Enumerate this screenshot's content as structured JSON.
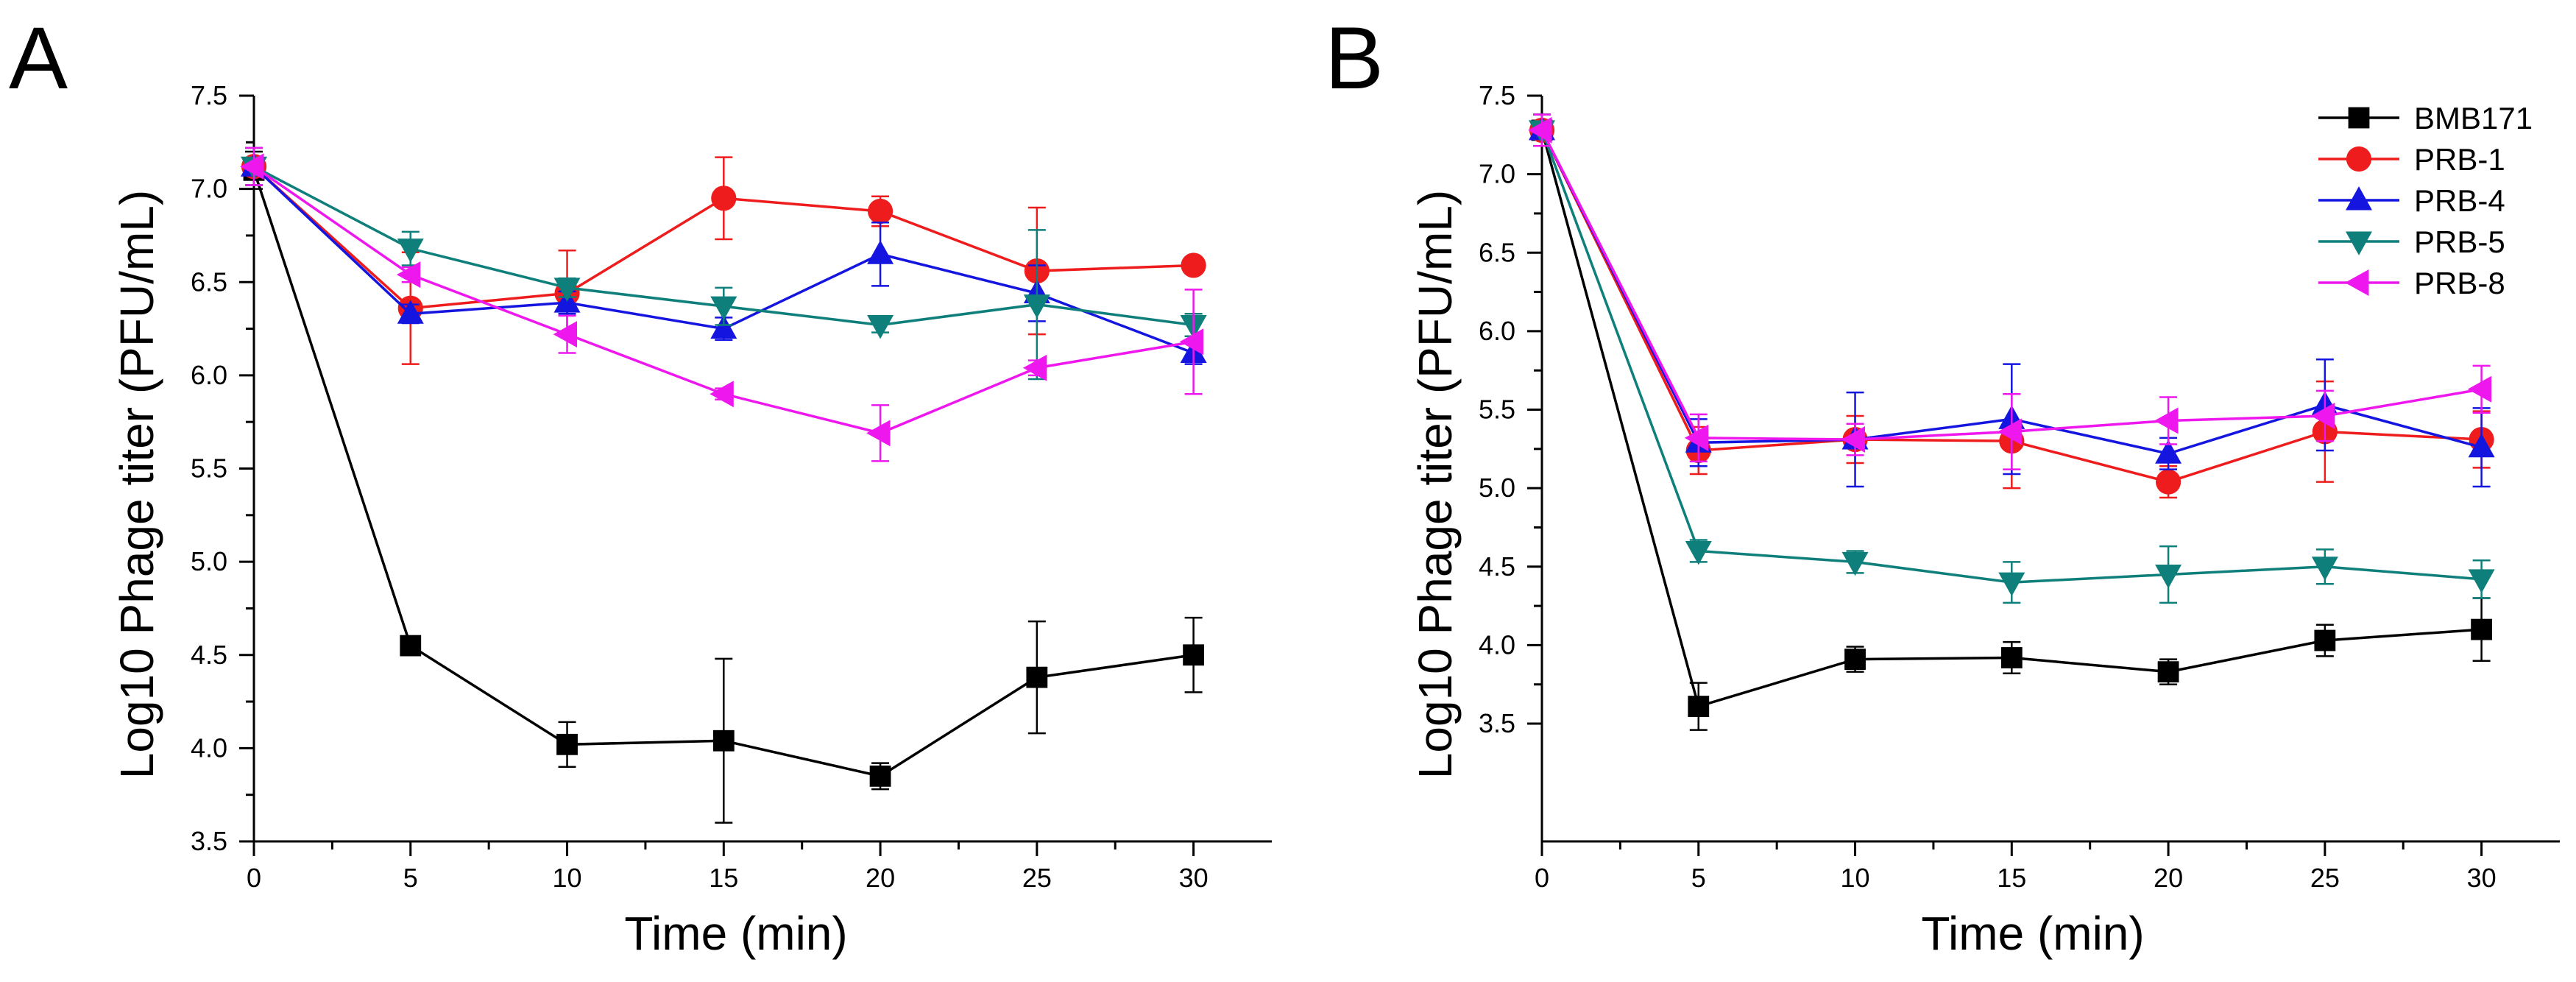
{
  "colors": {
    "BMB171": "#000000",
    "PRB-1": "#ee1c1c",
    "PRB-4": "#1515e0",
    "PRB-5": "#0e7f7a",
    "PRB-8": "#ee18ee"
  },
  "markers": {
    "BMB171": "square",
    "PRB-1": "circle",
    "PRB-4": "triangle-up",
    "PRB-5": "triangle-down",
    "PRB-8": "triangle-left"
  },
  "chart_data": [
    {
      "panel": "A",
      "type": "line",
      "xlabel": "Time (min)",
      "ylabel": "Log10 Phage titer (PFU/mL)",
      "xlim": [
        0,
        32.5
      ],
      "ylim": [
        3.5,
        7.5
      ],
      "xticks": [
        0,
        5,
        10,
        15,
        20,
        25,
        30
      ],
      "yticks": [
        "3.5",
        "4.0",
        "4.5",
        "5.0",
        "5.5",
        "6.0",
        "6.5",
        "7.0",
        "7.5"
      ],
      "legend": false,
      "series": [
        {
          "name": "BMB171",
          "x": [
            0,
            5,
            10,
            15,
            20,
            25,
            30
          ],
          "y": [
            7.1,
            4.55,
            4.02,
            4.04,
            3.85,
            4.38,
            4.5
          ],
          "err": [
            0.1,
            0.03,
            0.12,
            0.44,
            0.07,
            0.3,
            0.2
          ]
        },
        {
          "name": "PRB-1",
          "x": [
            0,
            5,
            10,
            15,
            20,
            25,
            30
          ],
          "y": [
            7.12,
            6.36,
            6.44,
            6.95,
            6.88,
            6.56,
            6.59
          ],
          "err": [
            0.1,
            0.3,
            0.23,
            0.22,
            0.08,
            0.34,
            0.03
          ]
        },
        {
          "name": "PRB-4",
          "x": [
            0,
            5,
            10,
            15,
            20,
            25,
            30
          ],
          "y": [
            7.12,
            6.33,
            6.39,
            6.25,
            6.65,
            6.44,
            6.12
          ],
          "err": [
            0.1,
            0.05,
            0.06,
            0.06,
            0.17,
            0.15,
            0.06
          ]
        },
        {
          "name": "PRB-5",
          "x": [
            0,
            5,
            10,
            15,
            20,
            25,
            30
          ],
          "y": [
            7.12,
            6.68,
            6.47,
            6.37,
            6.27,
            6.38,
            6.27
          ],
          "err": [
            0.1,
            0.09,
            0.05,
            0.1,
            0.04,
            0.4,
            0.06
          ]
        },
        {
          "name": "PRB-8",
          "x": [
            0,
            5,
            10,
            15,
            20,
            25,
            30
          ],
          "y": [
            7.12,
            6.54,
            6.22,
            5.9,
            5.69,
            6.04,
            6.18
          ],
          "err": [
            0.1,
            0.04,
            0.1,
            0.03,
            0.15,
            0.04,
            0.28
          ]
        }
      ]
    },
    {
      "panel": "B",
      "type": "line",
      "xlabel": "Time (min)",
      "ylabel": "Log10 Phage titer (PFU/mL)",
      "xlim": [
        0,
        32.5
      ],
      "ylim": [
        2.75,
        7.5
      ],
      "xticks": [
        0,
        5,
        10,
        15,
        20,
        25,
        30
      ],
      "yticks": [
        "3.5",
        "4.0",
        "4.5",
        "5.0",
        "5.5",
        "6.0",
        "6.5",
        "7.0",
        "7.5"
      ],
      "legend": true,
      "legend_position": "top-right",
      "series": [
        {
          "name": "BMB171",
          "x": [
            0,
            5,
            10,
            15,
            20,
            25,
            30
          ],
          "y": [
            7.28,
            3.61,
            3.91,
            3.92,
            3.83,
            4.03,
            4.1
          ],
          "err": [
            0.1,
            0.15,
            0.08,
            0.1,
            0.08,
            0.1,
            0.2
          ]
        },
        {
          "name": "PRB-1",
          "x": [
            0,
            5,
            10,
            15,
            20,
            25,
            30
          ],
          "y": [
            7.28,
            5.24,
            5.31,
            5.3,
            5.04,
            5.36,
            5.31
          ],
          "err": [
            0.1,
            0.15,
            0.15,
            0.3,
            0.1,
            0.32,
            0.18
          ]
        },
        {
          "name": "PRB-4",
          "x": [
            0,
            5,
            10,
            15,
            20,
            25,
            30
          ],
          "y": [
            7.28,
            5.29,
            5.31,
            5.44,
            5.22,
            5.53,
            5.26
          ],
          "err": [
            0.1,
            0.15,
            0.3,
            0.35,
            0.1,
            0.29,
            0.25
          ]
        },
        {
          "name": "PRB-5",
          "x": [
            0,
            5,
            10,
            15,
            20,
            25,
            30
          ],
          "y": [
            7.28,
            4.6,
            4.53,
            4.4,
            4.45,
            4.5,
            4.42
          ],
          "err": [
            0.1,
            0.07,
            0.07,
            0.13,
            0.18,
            0.11,
            0.12
          ]
        },
        {
          "name": "PRB-8",
          "x": [
            0,
            5,
            10,
            15,
            20,
            25,
            30
          ],
          "y": [
            7.28,
            5.32,
            5.31,
            5.36,
            5.43,
            5.46,
            5.63
          ],
          "err": [
            0.1,
            0.15,
            0.1,
            0.24,
            0.15,
            0.16,
            0.15
          ]
        }
      ]
    }
  ]
}
